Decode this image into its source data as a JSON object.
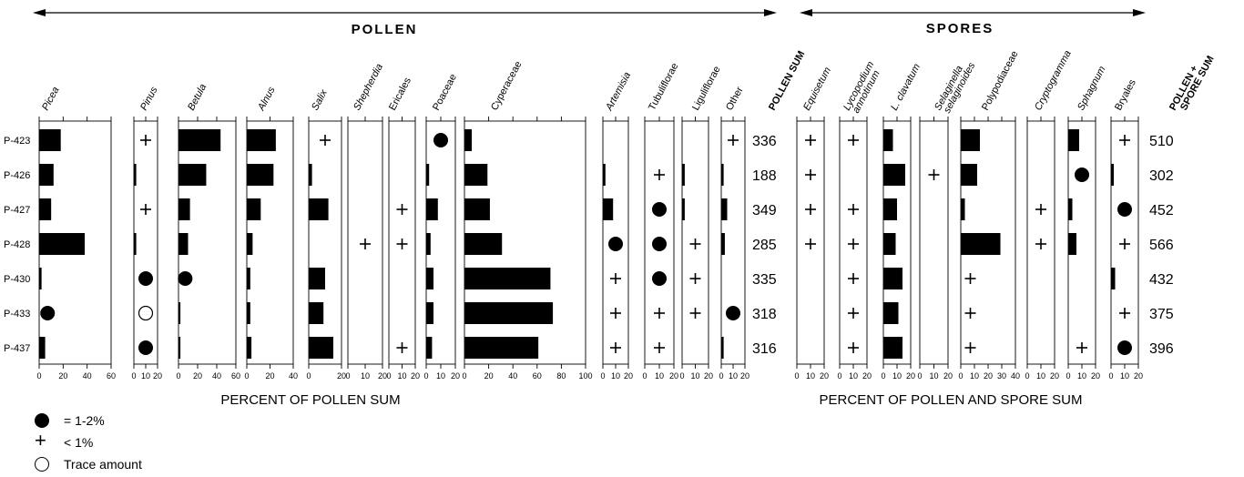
{
  "header": {
    "pollen_label": "POLLEN",
    "spores_label": "SPORES",
    "pollen_xlabel": "PERCENT OF POLLEN SUM",
    "spores_xlabel": "PERCENT OF POLLEN AND SPORE SUM",
    "pollen_sum_label": "POLLEN SUM",
    "total_sum_label_1": "POLLEN +",
    "total_sum_label_2": "SPORE SUM"
  },
  "legend": {
    "filled": "= 1-2%",
    "plus": "< 1%",
    "open": "Trace amount"
  },
  "chart_data": {
    "type": "bar",
    "samples": [
      "P-423",
      "P-426",
      "P-427",
      "P-428",
      "P-430",
      "P-433",
      "P-437"
    ],
    "pollen_sum": [
      336,
      188,
      349,
      285,
      335,
      318,
      316
    ],
    "pollen_spore_sum": [
      510,
      302,
      452,
      566,
      432,
      375,
      396
    ],
    "symbol_legend": {
      "D": "1-2%",
      "P": "< 1%",
      "O": "Trace amount"
    },
    "taxa": [
      {
        "group": "pollen",
        "name": "Picea",
        "italic": true,
        "xmax": 60,
        "ticks": [
          0,
          20,
          40,
          60
        ],
        "values": [
          18,
          12,
          10,
          38,
          2,
          "D",
          5
        ]
      },
      {
        "group": "pollen",
        "name": "Pinus",
        "italic": true,
        "xmax": 20,
        "ticks": [
          0,
          10,
          20
        ],
        "values": [
          "P",
          2,
          "P",
          2,
          "D",
          "O",
          "D"
        ]
      },
      {
        "group": "pollen",
        "name": "Betula",
        "italic": true,
        "xmax": 60,
        "ticks": [
          0,
          20,
          40,
          60
        ],
        "values": [
          44,
          29,
          12,
          10,
          "D",
          2,
          2
        ]
      },
      {
        "group": "pollen",
        "name": "Alnus",
        "italic": true,
        "xmax": 40,
        "ticks": [
          0,
          20,
          40
        ],
        "values": [
          25,
          23,
          12,
          5,
          3,
          3,
          4
        ]
      },
      {
        "group": "pollen",
        "name": "Salix",
        "italic": true,
        "xmax": 20,
        "ticks": [
          0,
          20
        ],
        "values": [
          "P",
          2,
          12,
          null,
          10,
          9,
          15
        ]
      },
      {
        "group": "pollen",
        "name": "Shepherdia",
        "italic": true,
        "xmax": 20,
        "ticks": [
          0,
          10,
          20
        ],
        "values": [
          null,
          null,
          null,
          "P",
          null,
          null,
          null
        ]
      },
      {
        "group": "pollen",
        "name": "Ericales",
        "italic": false,
        "xmax": 20,
        "ticks": [
          0,
          10,
          20
        ],
        "values": [
          null,
          null,
          "P",
          "P",
          null,
          null,
          "P"
        ]
      },
      {
        "group": "pollen",
        "name": "Poaceae",
        "italic": false,
        "xmax": 20,
        "ticks": [
          0,
          10,
          20
        ],
        "values": [
          "D",
          2,
          8,
          3,
          5,
          5,
          4
        ]
      },
      {
        "group": "pollen",
        "name": "Cyperaceae",
        "italic": false,
        "xmax": 100,
        "ticks": [
          0,
          20,
          40,
          60,
          80,
          100
        ],
        "values": [
          6,
          19,
          21,
          31,
          71,
          73,
          61
        ]
      },
      {
        "group": "pollen",
        "name": "Artemisia",
        "italic": true,
        "xmax": 20,
        "ticks": [
          0,
          10,
          20
        ],
        "values": [
          null,
          2,
          8,
          "D",
          "P",
          "P",
          "P"
        ]
      },
      {
        "group": "pollen",
        "name": "Tubuliflorae",
        "italic": false,
        "xmax": 20,
        "ticks": [
          0,
          10,
          20
        ],
        "values": [
          null,
          "P",
          "D",
          "D",
          "D",
          "P",
          "P"
        ]
      },
      {
        "group": "pollen",
        "name": "Liguliflorae",
        "italic": false,
        "xmax": 20,
        "ticks": [
          0,
          10,
          20
        ],
        "values": [
          null,
          2,
          2,
          "P",
          "P",
          "P",
          null
        ]
      },
      {
        "group": "pollen",
        "name": "Other",
        "italic": false,
        "xmax": 20,
        "ticks": [
          0,
          10,
          20
        ],
        "values": [
          "P",
          2,
          5,
          3,
          null,
          "D",
          2
        ]
      },
      {
        "group": "spores",
        "name": "Equisetum",
        "italic": true,
        "xmax": 20,
        "ticks": [
          0,
          10,
          20
        ],
        "values": [
          "P",
          "P",
          "P",
          "P",
          null,
          null,
          null
        ]
      },
      {
        "group": "spores",
        "name": "Lycopodium annotinum",
        "italic": true,
        "xmax": 20,
        "ticks": [
          0,
          10,
          20
        ],
        "values": [
          "P",
          null,
          "P",
          "P",
          "P",
          "P",
          "P"
        ]
      },
      {
        "group": "spores",
        "name": "L. clavatum",
        "italic": true,
        "xmax": 20,
        "ticks": [
          0,
          10,
          20
        ],
        "values": [
          7,
          16,
          10,
          9,
          14,
          11,
          14
        ]
      },
      {
        "group": "spores",
        "name": "Selaginella selaginoides",
        "italic": true,
        "xmax": 20,
        "ticks": [
          0,
          10,
          20
        ],
        "values": [
          null,
          "P",
          null,
          null,
          null,
          null,
          null
        ]
      },
      {
        "group": "spores",
        "name": "Polypodiaceae",
        "italic": false,
        "xmax": 40,
        "ticks": [
          0,
          10,
          20,
          30,
          40
        ],
        "values": [
          14,
          12,
          3,
          29,
          "P",
          "P",
          "P"
        ]
      },
      {
        "group": "spores",
        "name": "Cryptogramma",
        "italic": true,
        "xmax": 20,
        "ticks": [
          0,
          10,
          20
        ],
        "values": [
          null,
          null,
          "P",
          "P",
          null,
          null,
          null
        ]
      },
      {
        "group": "spores",
        "name": "Sphagnum",
        "italic": true,
        "xmax": 20,
        "ticks": [
          0,
          10,
          20
        ],
        "values": [
          8,
          "D",
          3,
          6,
          null,
          null,
          "P"
        ]
      },
      {
        "group": "spores",
        "name": "Bryales",
        "italic": false,
        "xmax": 20,
        "ticks": [
          0,
          10,
          20
        ],
        "values": [
          "P",
          2,
          "D",
          "P",
          3,
          "P",
          "D"
        ]
      }
    ]
  }
}
